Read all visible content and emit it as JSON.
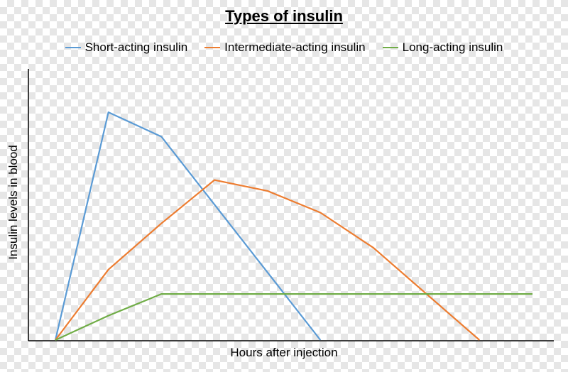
{
  "chart_data": {
    "type": "line",
    "title": "Types of insulin",
    "xlabel": "Hours after injection",
    "ylabel": "Insulin levels in blood",
    "legend_position": "top",
    "grid": false,
    "x": [
      0,
      1,
      2,
      3,
      4,
      5,
      6,
      7,
      8,
      9
    ],
    "ylim": [
      0,
      10
    ],
    "series": [
      {
        "name": "Short-acting insulin",
        "color": "#5B9BD5",
        "x": [
          0,
          1,
          2,
          5
        ],
        "y": [
          0,
          8.4,
          7.5,
          0
        ]
      },
      {
        "name": "Intermediate-acting insulin",
        "color": "#ED7D31",
        "x": [
          0,
          1,
          2,
          3,
          4,
          5,
          6,
          8
        ],
        "y": [
          0,
          2.6,
          4.3,
          5.9,
          5.5,
          4.7,
          3.4,
          0
        ]
      },
      {
        "name": "Long-acting insulin",
        "color": "#70AD47",
        "x": [
          0,
          1,
          2,
          9
        ],
        "y": [
          0,
          0.9,
          1.7,
          1.7
        ]
      }
    ]
  }
}
